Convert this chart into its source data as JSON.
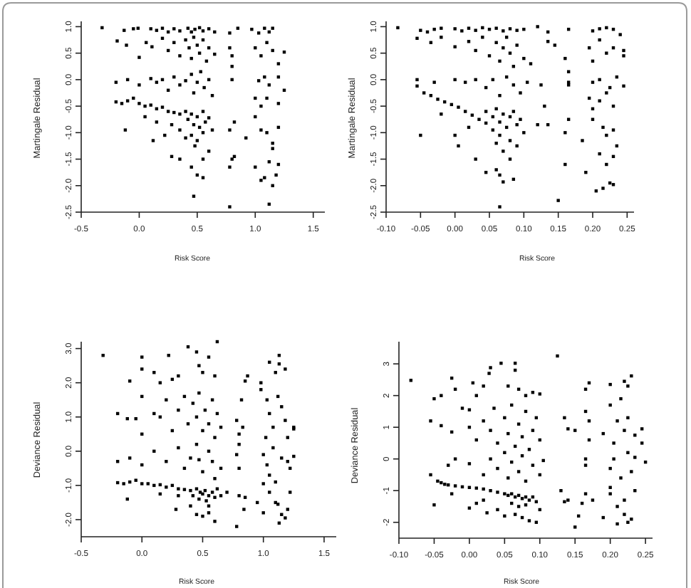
{
  "chart_data": [
    {
      "type": "scatter",
      "xlabel": "Risk Score",
      "ylabel": "Martingale Residual",
      "color": "#000000",
      "marker": "square",
      "xlim": [
        -0.5,
        1.6
      ],
      "ylim": [
        -2.5,
        1.1
      ],
      "xticks": [
        {
          "value": -0.5,
          "label": "-0.5"
        },
        {
          "value": 0,
          "label": "0.0"
        },
        {
          "value": 0.5,
          "label": "0.5"
        },
        {
          "value": 1,
          "label": "1.0"
        },
        {
          "value": 1.5,
          "label": "1.5"
        }
      ],
      "yticks": [
        {
          "value": -2.5,
          "label": "-2.5"
        },
        {
          "value": -2,
          "label": "-2.0"
        },
        {
          "value": -1.5,
          "label": "-1.5"
        },
        {
          "value": -1,
          "label": "-1.0"
        },
        {
          "value": -0.5,
          "label": "-0.5"
        },
        {
          "value": 0,
          "label": "0.0"
        },
        {
          "value": 0.5,
          "label": "0.5"
        },
        {
          "value": 1,
          "label": "1.0"
        }
      ],
      "x": [
        -0.32,
        -0.13,
        -0.05,
        -0.01,
        0.1,
        0.15,
        0.2,
        0.25,
        0.3,
        0.35,
        0.42,
        0.45,
        0.48,
        0.52,
        0.55,
        0.6,
        0.65,
        0.78,
        0.85,
        0.97,
        1.03,
        1.08,
        1.12,
        1.15,
        -0.19,
        -0.11,
        0.0,
        0.06,
        0.11,
        0.2,
        0.25,
        0.3,
        0.35,
        0.4,
        0.43,
        0.45,
        0.47,
        0.5,
        0.52,
        0.55,
        0.58,
        0.6,
        0.65,
        0.78,
        0.8,
        1.0,
        1.05,
        1.1,
        1.15,
        1.2,
        1.25,
        -0.2,
        -0.1,
        0.0,
        0.1,
        0.15,
        0.2,
        0.25,
        0.3,
        0.35,
        0.4,
        0.45,
        0.47,
        0.5,
        0.53,
        0.56,
        0.6,
        0.63,
        0.8,
        0.8,
        1.03,
        1.08,
        1.12,
        1.2,
        1.25,
        -0.2,
        -0.15,
        -0.1,
        -0.05,
        0.0,
        0.05,
        0.1,
        0.15,
        0.2,
        0.25,
        0.3,
        0.35,
        0.4,
        0.42,
        0.45,
        0.47,
        0.5,
        0.52,
        0.55,
        0.57,
        0.6,
        0.63,
        0.45,
        0.5,
        0.55,
        0.48,
        0.4,
        0.35,
        0.28,
        0.15,
        0.05,
        -0.12,
        0.12,
        0.22,
        0.78,
        0.82,
        0.8,
        0.78,
        0.82,
        0.92,
        1.0,
        1.05,
        1.1,
        1.2,
        1.0,
        1.05,
        1.15,
        1.1,
        1.2,
        1.0,
        1.08,
        1.05,
        1.12,
        1.18,
        1.15,
        1.12,
        1.2,
        1.15,
        0.28,
        0.35,
        0.45,
        0.5,
        0.55,
        0.47,
        0.78,
        0.55,
        0.6
      ],
      "values": [
        0.98,
        0.93,
        0.96,
        0.97,
        0.96,
        0.93,
        0.97,
        0.9,
        0.96,
        0.92,
        0.97,
        0.9,
        0.95,
        0.98,
        0.92,
        0.96,
        0.9,
        0.88,
        0.97,
        0.95,
        0.88,
        0.97,
        0.9,
        0.97,
        0.73,
        0.65,
        0.42,
        0.7,
        0.62,
        0.78,
        0.55,
        0.7,
        0.45,
        0.75,
        0.6,
        0.4,
        0.8,
        0.65,
        0.5,
        0.75,
        0.35,
        0.6,
        0.48,
        0.6,
        0.45,
        0.6,
        0.45,
        0.7,
        0.55,
        0.3,
        0.52,
        -0.05,
        0.0,
        -0.1,
        0.02,
        -0.05,
        0.0,
        -0.2,
        0.05,
        -0.1,
        -0.02,
        0.1,
        -0.25,
        -0.05,
        0.15,
        -0.15,
        0.0,
        -0.3,
        0.0,
        0.25,
        -0.02,
        0.05,
        -0.1,
        0.05,
        -0.2,
        -0.42,
        -0.45,
        -0.4,
        -0.35,
        -0.45,
        -0.5,
        -0.48,
        -0.55,
        -0.52,
        -0.6,
        -0.62,
        -0.65,
        -0.6,
        -0.75,
        -0.65,
        -0.85,
        -0.7,
        -0.9,
        -0.6,
        -0.8,
        -0.72,
        -0.95,
        -1.05,
        -1.15,
        -1.0,
        -1.25,
        -1.1,
        -0.95,
        -0.85,
        -0.8,
        -0.7,
        -0.95,
        -1.15,
        -1.05,
        -0.95,
        -0.8,
        -1.5,
        -1.65,
        -1.45,
        -1.1,
        -0.35,
        -0.5,
        -0.35,
        -0.45,
        -0.7,
        -0.95,
        -1.2,
        -1.0,
        -0.9,
        -1.65,
        -1.85,
        -1.9,
        -1.55,
        -1.8,
        -2.0,
        -2.35,
        -1.6,
        -1.3,
        -1.45,
        -1.5,
        -1.65,
        -1.8,
        -1.85,
        -2.2,
        -2.4,
        -1.5,
        -1.35
      ]
    },
    {
      "type": "scatter",
      "xlabel": "Risk Score",
      "ylabel": "Martingale Residual",
      "color": "#000000",
      "marker": "square",
      "xlim": [
        -0.1,
        0.26
      ],
      "ylim": [
        -2.5,
        1.1
      ],
      "xticks": [
        {
          "value": -0.1,
          "label": "-0.10"
        },
        {
          "value": -0.05,
          "label": "-0.05"
        },
        {
          "value": 0,
          "label": "0.00"
        },
        {
          "value": 0.05,
          "label": "0.05"
        },
        {
          "value": 0.1,
          "label": "0.10"
        },
        {
          "value": 0.15,
          "label": "0.15"
        },
        {
          "value": 0.2,
          "label": "0.20"
        },
        {
          "value": 0.25,
          "label": "0.25"
        }
      ],
      "yticks": [
        {
          "value": -2.5,
          "label": "-2.5"
        },
        {
          "value": -2,
          "label": "-2.0"
        },
        {
          "value": -1.5,
          "label": "-1.5"
        },
        {
          "value": -1,
          "label": "-1.0"
        },
        {
          "value": -0.5,
          "label": "-0.5"
        },
        {
          "value": 0,
          "label": "0.0"
        },
        {
          "value": 0.5,
          "label": "0.5"
        },
        {
          "value": 1,
          "label": "1.0"
        }
      ],
      "x": [
        -0.083,
        -0.05,
        -0.04,
        -0.03,
        -0.02,
        0.0,
        0.01,
        0.02,
        0.03,
        0.04,
        0.05,
        0.06,
        0.07,
        0.08,
        0.09,
        0.1,
        0.12,
        0.135,
        0.165,
        0.2,
        0.21,
        0.22,
        0.23,
        0.24,
        -0.055,
        -0.035,
        -0.02,
        0.0,
        0.02,
        0.03,
        0.04,
        0.05,
        0.06,
        0.065,
        0.07,
        0.075,
        0.08,
        0.085,
        0.09,
        0.1,
        0.11,
        0.135,
        0.145,
        0.16,
        0.195,
        0.2,
        0.21,
        0.22,
        0.23,
        0.245,
        0.245,
        -0.055,
        -0.03,
        0.0,
        0.015,
        0.03,
        0.045,
        0.055,
        0.065,
        0.075,
        0.085,
        0.095,
        0.105,
        0.125,
        0.165,
        0.165,
        0.165,
        0.2,
        0.21,
        0.225,
        0.235,
        0.245,
        -0.055,
        -0.045,
        -0.035,
        -0.025,
        -0.015,
        -0.005,
        0.005,
        0.015,
        0.025,
        0.035,
        0.045,
        0.055,
        0.065,
        0.045,
        0.055,
        0.06,
        0.065,
        0.07,
        0.075,
        0.08,
        0.085,
        0.09,
        0.095,
        0.1,
        0.06,
        0.07,
        0.08,
        0.09,
        0.02,
        0.0,
        0.005,
        -0.05,
        -0.02,
        0.03,
        0.045,
        0.06,
        0.065,
        0.07,
        0.085,
        0.065,
        0.08,
        0.13,
        0.135,
        0.12,
        0.15,
        0.16,
        0.16,
        0.165,
        0.19,
        0.185,
        0.195,
        0.2,
        0.21,
        0.22,
        0.23,
        0.2,
        0.215,
        0.23,
        0.22,
        0.235,
        0.21,
        0.22,
        0.23,
        0.215,
        0.225,
        0.23,
        0.205
      ],
      "values": [
        0.98,
        0.93,
        0.9,
        0.95,
        0.97,
        0.96,
        0.92,
        0.97,
        0.93,
        0.98,
        0.95,
        0.97,
        0.92,
        0.96,
        0.93,
        0.95,
        1.0,
        0.9,
        0.95,
        0.92,
        0.96,
        0.98,
        0.95,
        0.85,
        0.78,
        0.7,
        0.8,
        0.62,
        0.72,
        0.55,
        0.8,
        0.45,
        0.7,
        0.35,
        0.6,
        0.8,
        0.5,
        0.25,
        0.65,
        0.4,
        0.3,
        0.72,
        0.65,
        0.4,
        0.6,
        0.35,
        0.75,
        0.5,
        0.6,
        0.55,
        0.45,
        0.0,
        -0.05,
        0.0,
        -0.05,
        0.0,
        -0.15,
        0.0,
        -0.3,
        0.05,
        -0.1,
        -0.25,
        -0.05,
        -0.1,
        0.15,
        -0.05,
        -0.1,
        -0.05,
        0.0,
        -0.15,
        0.05,
        -0.12,
        -0.12,
        -0.25,
        -0.3,
        -0.37,
        -0.42,
        -0.47,
        -0.52,
        -0.6,
        -0.67,
        -0.75,
        -0.82,
        -0.95,
        -1.05,
        -0.6,
        -0.7,
        -0.55,
        -0.8,
        -0.65,
        -0.9,
        -0.7,
        -0.6,
        -0.85,
        -0.75,
        -1.0,
        -1.2,
        -1.35,
        -1.15,
        -1.25,
        -0.9,
        -1.05,
        -1.25,
        -1.05,
        -0.65,
        -1.5,
        -1.75,
        -1.7,
        -1.8,
        -1.93,
        -1.88,
        -2.4,
        -1.5,
        -0.5,
        -0.85,
        -0.85,
        -2.28,
        -1.6,
        -1.0,
        -0.75,
        -1.75,
        -1.15,
        -0.35,
        -0.55,
        -0.4,
        -0.25,
        -0.5,
        -0.75,
        -0.9,
        -0.95,
        -1.05,
        -1.25,
        -1.4,
        -1.6,
        -1.45,
        -2.05,
        -1.95,
        -1.98,
        -2.1
      ]
    },
    {
      "type": "scatter",
      "xlabel": "Risk Score",
      "ylabel": "Deviance Residual",
      "color": "#000000",
      "marker": "square",
      "xlim": [
        -0.5,
        1.6
      ],
      "ylim": [
        -2.5,
        3.2
      ],
      "xticks": [
        {
          "value": -0.5,
          "label": "-0.5"
        },
        {
          "value": 0,
          "label": "0.0"
        },
        {
          "value": 0.5,
          "label": "0.5"
        },
        {
          "value": 1,
          "label": "1.0"
        },
        {
          "value": 1.5,
          "label": "1.5"
        }
      ],
      "yticks": [
        {
          "value": -2,
          "label": "-2.0"
        },
        {
          "value": -1,
          "label": "-1.0"
        },
        {
          "value": 0,
          "label": "0.0"
        },
        {
          "value": 1,
          "label": "1.0"
        },
        {
          "value": 2,
          "label": "2.0"
        },
        {
          "value": 3,
          "label": "3.0"
        }
      ],
      "x": [
        -0.32,
        -0.1,
        0.0,
        0.0,
        0.1,
        0.15,
        0.22,
        0.25,
        0.3,
        0.38,
        0.45,
        0.47,
        0.5,
        0.55,
        0.62,
        0.6,
        0.87,
        0.85,
        0.98,
        1.05,
        1.13,
        1.1,
        1.18,
        1.13,
        -0.2,
        -0.12,
        -0.05,
        0.0,
        0.0,
        0.1,
        0.15,
        0.2,
        0.25,
        0.3,
        0.35,
        0.38,
        0.42,
        0.45,
        0.47,
        0.5,
        0.52,
        0.55,
        0.58,
        0.6,
        0.62,
        0.65,
        0.78,
        0.8,
        0.82,
        0.83,
        0.98,
        1.03,
        1.05,
        1.08,
        1.12,
        1.15,
        1.18,
        1.25,
        1.25,
        1.02,
        1.2,
        -0.2,
        -0.1,
        0.0,
        0.1,
        0.2,
        0.3,
        0.35,
        0.4,
        0.45,
        0.47,
        0.5,
        0.55,
        0.58,
        0.6,
        0.65,
        0.78,
        0.8,
        0.8,
        1.0,
        1.03,
        1.08,
        1.15,
        1.2,
        1.22,
        1.25,
        1.05,
        1.1,
        -0.2,
        -0.15,
        -0.1,
        -0.05,
        0.0,
        0.05,
        0.1,
        0.15,
        0.2,
        0.25,
        0.3,
        0.35,
        0.4,
        0.45,
        0.48,
        0.5,
        0.52,
        0.55,
        0.58,
        0.6,
        0.42,
        0.47,
        0.53,
        0.62,
        0.65,
        0.7,
        -0.12,
        0.15,
        0.3,
        0.28,
        0.4,
        0.45,
        0.5,
        0.55,
        0.6,
        0.55,
        0.78,
        0.8,
        0.85,
        0.84,
        0.95,
        1.0,
        1.05,
        1.1,
        1.13,
        1.15,
        1.18,
        1.2,
        1.22,
        1.12,
        1.0
      ],
      "values": [
        2.8,
        2.05,
        2.75,
        2.4,
        2.3,
        2.0,
        2.8,
        2.1,
        2.2,
        3.05,
        2.9,
        2.5,
        2.3,
        2.75,
        3.2,
        2.2,
        2.2,
        2.05,
        2.0,
        2.6,
        2.8,
        2.3,
        2.4,
        2.55,
        1.1,
        0.95,
        0.95,
        1.6,
        0.5,
        1.1,
        1.0,
        1.5,
        0.6,
        1.2,
        1.6,
        0.8,
        1.4,
        1.0,
        1.7,
        0.6,
        1.2,
        0.8,
        1.5,
        0.4,
        1.1,
        0.7,
        0.9,
        0.5,
        1.5,
        0.7,
        1.8,
        1.5,
        1.1,
        0.7,
        1.6,
        1.3,
        0.9,
        0.65,
        0.7,
        0.4,
        0.4,
        -0.3,
        -0.2,
        -0.4,
        0.0,
        -0.3,
        0.1,
        -0.5,
        -0.2,
        0.2,
        -0.25,
        -0.6,
        0.0,
        -0.3,
        -0.8,
        -0.5,
        -0.1,
        0.2,
        -0.5,
        -0.1,
        -0.4,
        0.1,
        -0.2,
        -0.3,
        -0.5,
        -0.15,
        -0.7,
        -0.9,
        -0.92,
        -0.95,
        -0.9,
        -0.85,
        -0.95,
        -0.95,
        -1.0,
        -0.98,
        -1.05,
        -1.0,
        -1.1,
        -1.12,
        -1.15,
        -1.1,
        -1.2,
        -1.25,
        -1.15,
        -1.3,
        -1.2,
        -1.35,
        -1.3,
        -1.4,
        -1.45,
        -1.1,
        -1.3,
        -1.2,
        -1.4,
        -1.25,
        -1.3,
        -1.7,
        -1.6,
        -1.85,
        -1.9,
        -1.8,
        -2.05,
        -1.6,
        -2.2,
        -1.3,
        -1.35,
        -1.7,
        -1.5,
        -1.8,
        -1.2,
        -1.5,
        -2.1,
        -1.85,
        -1.95,
        -1.7,
        -1.2,
        -1.55,
        -0.95
      ]
    },
    {
      "type": "scatter",
      "xlabel": "Risk Score",
      "ylabel": "Deviance Residual",
      "color": "#000000",
      "marker": "square",
      "xlim": [
        -0.1,
        0.26
      ],
      "ylim": [
        -2.5,
        3.7
      ],
      "xticks": [
        {
          "value": -0.1,
          "label": "-0.10"
        },
        {
          "value": -0.05,
          "label": "-0.05"
        },
        {
          "value": 0,
          "label": "0.00"
        },
        {
          "value": 0.05,
          "label": "0.05"
        },
        {
          "value": 0.1,
          "label": "0.10"
        },
        {
          "value": 0.15,
          "label": "0.15"
        },
        {
          "value": 0.2,
          "label": "0.20"
        },
        {
          "value": 0.25,
          "label": "0.25"
        }
      ],
      "yticks": [
        -2,
        -1,
        0,
        1,
        2,
        3
      ],
      "x": [
        -0.083,
        -0.05,
        -0.04,
        -0.025,
        -0.02,
        -0.01,
        0.005,
        0.01,
        0.02,
        0.028,
        0.03,
        0.045,
        0.055,
        0.065,
        0.065,
        0.07,
        0.08,
        0.09,
        0.1,
        0.125,
        0.17,
        0.165,
        0.2,
        0.22,
        0.225,
        0.23,
        0.215,
        -0.055,
        -0.04,
        -0.025,
        0.0,
        0.0,
        0.01,
        0.02,
        0.03,
        0.035,
        0.04,
        0.05,
        0.055,
        0.06,
        0.065,
        0.07,
        0.075,
        0.08,
        0.085,
        0.09,
        0.095,
        0.1,
        0.135,
        0.14,
        0.15,
        0.165,
        0.17,
        0.17,
        0.19,
        0.2,
        0.205,
        0.21,
        0.22,
        0.225,
        0.235,
        0.245,
        0.245,
        -0.055,
        -0.03,
        -0.02,
        0.0,
        0.02,
        0.03,
        0.04,
        0.05,
        0.055,
        0.06,
        0.07,
        0.075,
        0.08,
        0.09,
        0.1,
        0.105,
        0.165,
        0.165,
        0.2,
        0.205,
        0.215,
        0.225,
        0.23,
        0.235,
        0.25,
        0.2,
        -0.045,
        -0.04,
        -0.035,
        -0.03,
        -0.02,
        -0.01,
        0.0,
        0.01,
        0.02,
        0.03,
        0.04,
        0.05,
        0.055,
        0.06,
        0.065,
        0.07,
        0.075,
        0.08,
        0.085,
        0.09,
        0.095,
        0.06,
        0.07,
        0.08,
        0.02,
        -0.025,
        0.0,
        0.01,
        -0.05,
        0.025,
        0.04,
        0.05,
        0.065,
        0.075,
        0.085,
        0.095,
        0.1,
        0.13,
        0.135,
        0.14,
        0.15,
        0.155,
        0.16,
        0.165,
        0.175,
        0.19,
        0.21,
        0.22,
        0.225,
        0.23,
        0.22,
        0.235,
        0.2,
        0.21
      ],
      "values": [
        2.48,
        1.9,
        2.0,
        2.55,
        2.2,
        1.6,
        2.4,
        2.0,
        2.3,
        2.7,
        2.88,
        3.02,
        2.3,
        3.02,
        2.8,
        2.2,
        2.0,
        2.1,
        2.05,
        3.25,
        2.4,
        2.2,
        2.35,
        2.45,
        2.3,
        2.62,
        1.9,
        1.2,
        1.05,
        0.85,
        1.55,
        1.0,
        0.6,
        1.2,
        0.9,
        1.6,
        0.5,
        1.3,
        0.8,
        1.7,
        0.4,
        1.1,
        0.7,
        1.5,
        0.3,
        0.9,
        1.3,
        0.6,
        1.3,
        0.95,
        0.9,
        1.5,
        1.2,
        0.6,
        0.8,
        1.7,
        0.5,
        1.2,
        0.9,
        1.3,
        0.75,
        0.95,
        0.5,
        -0.5,
        -0.2,
        0.0,
        -0.15,
        -0.5,
        0.0,
        -0.3,
        0.2,
        -0.6,
        -0.1,
        -0.4,
        0.1,
        -0.7,
        -0.2,
        -0.5,
        -0.05,
        0.0,
        -0.2,
        -0.3,
        0.0,
        -0.6,
        0.2,
        -0.4,
        0.05,
        -0.1,
        -0.9,
        -0.7,
        -0.75,
        -0.8,
        -0.82,
        -0.85,
        -0.88,
        -0.9,
        -0.92,
        -0.95,
        -1.0,
        -1.05,
        -1.1,
        -1.15,
        -1.1,
        -1.2,
        -1.15,
        -1.25,
        -1.2,
        -1.3,
        -1.2,
        -1.35,
        -1.4,
        -1.5,
        -1.45,
        -1.3,
        -1.1,
        -1.55,
        -1.4,
        -1.45,
        -1.7,
        -1.6,
        -1.8,
        -1.75,
        -1.85,
        -1.95,
        -2.0,
        -1.6,
        -1.0,
        -1.35,
        -1.3,
        -2.15,
        -1.8,
        -1.4,
        -1.1,
        -1.3,
        -1.85,
        -2.05,
        -1.75,
        -2.0,
        -1.9,
        -1.3,
        -1.0,
        -1.1,
        -1.5
      ]
    }
  ]
}
